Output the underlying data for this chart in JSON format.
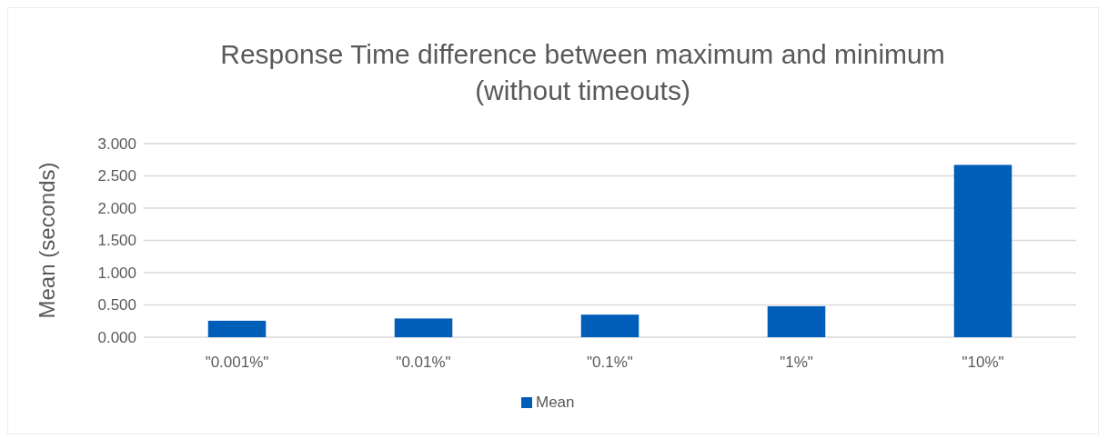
{
  "chart_data": {
    "type": "bar",
    "title": "Response Time difference between maximum and minimum (without timeouts)",
    "ylabel": "Mean (seconds)",
    "categories": [
      "\"0.001%\"",
      "\"0.01%\"",
      "\"0.1%\"",
      "\"1%\"",
      "\"10%\""
    ],
    "series": [
      {
        "name": "Mean",
        "color": "#005eb8",
        "values": [
          0.255,
          0.29,
          0.35,
          0.48,
          2.67
        ]
      }
    ],
    "ylim": [
      0,
      3
    ],
    "yticks": [
      {
        "value": 0,
        "label": "0.000"
      },
      {
        "value": 0.5,
        "label": "0.500"
      },
      {
        "value": 1,
        "label": "1.000"
      },
      {
        "value": 1.5,
        "label": "1.500"
      },
      {
        "value": 2,
        "label": "2.000"
      },
      {
        "value": 2.5,
        "label": "2.500"
      },
      {
        "value": 3,
        "label": "3.000"
      }
    ],
    "grid": "y",
    "legend": "bottom"
  }
}
